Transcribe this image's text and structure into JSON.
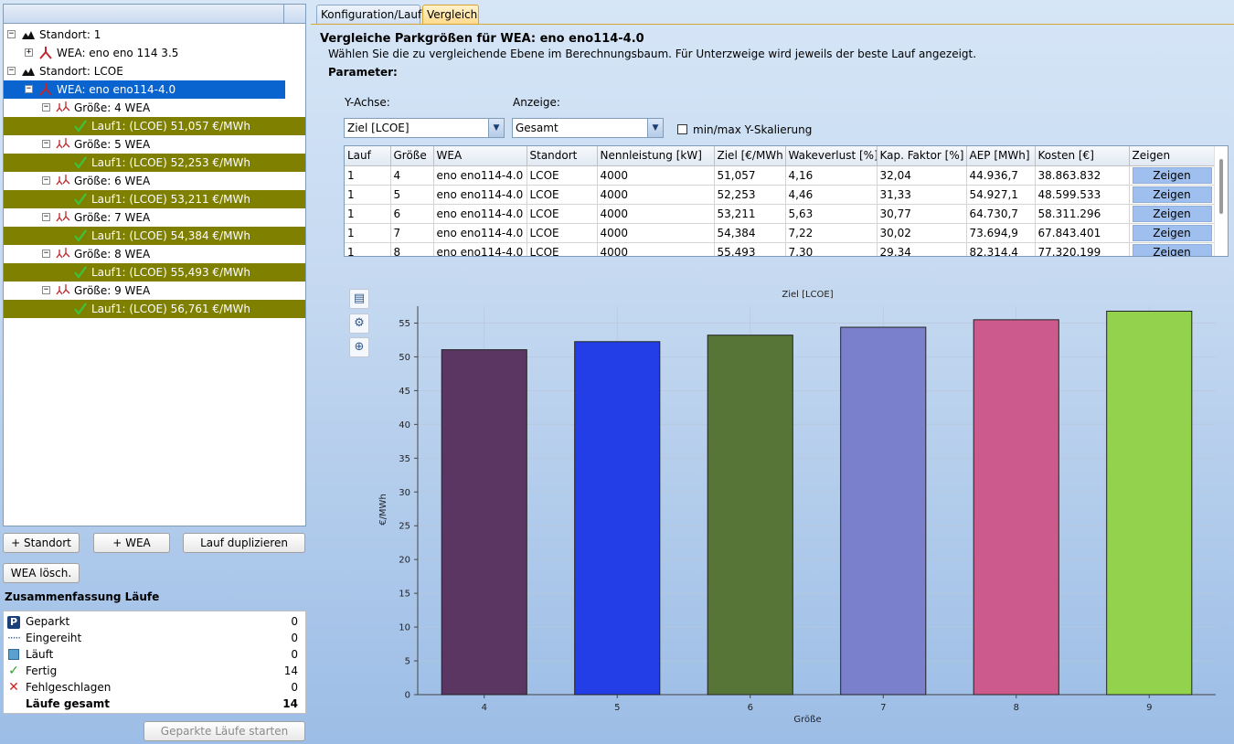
{
  "tree": {
    "items": [
      {
        "level": 0,
        "expander": "−",
        "icon": "site-icon",
        "label": "Standort: 1",
        "state": "normal"
      },
      {
        "level": 1,
        "expander": "+",
        "icon": "turbine-icon",
        "label": "WEA: eno eno 114 3.5",
        "state": "normal"
      },
      {
        "level": 0,
        "expander": "−",
        "icon": "site-icon",
        "label": "Standort: LCOE",
        "state": "normal"
      },
      {
        "level": 1,
        "expander": "−",
        "icon": "turbine-icon",
        "label": "WEA: eno eno114-4.0",
        "state": "selected"
      },
      {
        "level": 2,
        "expander": "−",
        "icon": "windpark-icon",
        "label": "Größe: 4 WEA",
        "state": "normal"
      },
      {
        "level": 3,
        "expander": "",
        "icon": "check-icon",
        "label": "Lauf1: (LCOE) 51,057 €/MWh",
        "state": "highlight"
      },
      {
        "level": 2,
        "expander": "−",
        "icon": "windpark-icon",
        "label": "Größe: 5 WEA",
        "state": "normal"
      },
      {
        "level": 3,
        "expander": "",
        "icon": "check-icon",
        "label": "Lauf1: (LCOE) 52,253 €/MWh",
        "state": "highlight"
      },
      {
        "level": 2,
        "expander": "−",
        "icon": "windpark-icon",
        "label": "Größe: 6 WEA",
        "state": "normal"
      },
      {
        "level": 3,
        "expander": "",
        "icon": "check-icon",
        "label": "Lauf1: (LCOE) 53,211 €/MWh",
        "state": "highlight"
      },
      {
        "level": 2,
        "expander": "−",
        "icon": "windpark-icon",
        "label": "Größe: 7 WEA",
        "state": "normal"
      },
      {
        "level": 3,
        "expander": "",
        "icon": "check-icon",
        "label": "Lauf1: (LCOE) 54,384 €/MWh",
        "state": "highlight"
      },
      {
        "level": 2,
        "expander": "−",
        "icon": "windpark-icon",
        "label": "Größe: 8 WEA",
        "state": "normal"
      },
      {
        "level": 3,
        "expander": "",
        "icon": "check-icon",
        "label": "Lauf1: (LCOE) 55,493 €/MWh",
        "state": "highlight"
      },
      {
        "level": 2,
        "expander": "−",
        "icon": "windpark-icon",
        "label": "Größe: 9 WEA",
        "state": "normal"
      },
      {
        "level": 3,
        "expander": "",
        "icon": "check-icon",
        "label": "Lauf1: (LCOE) 56,761 €/MWh",
        "state": "highlight"
      }
    ]
  },
  "buttons": {
    "add_site": "+ Standort",
    "add_wea": "+ WEA",
    "duplicate_run": "Lauf duplizieren",
    "delete_wea": "WEA lösch.",
    "start_parked": "Geparkte Läufe starten"
  },
  "summary": {
    "title": "Zusammenfassung Läufe",
    "rows": [
      {
        "icon": "parked-icon",
        "label": "Geparkt",
        "value": "0"
      },
      {
        "icon": "queued-icon",
        "label": "Eingereiht",
        "value": "0"
      },
      {
        "icon": "running-icon",
        "label": "Läuft",
        "value": "0"
      },
      {
        "icon": "done-icon",
        "label": "Fertig",
        "value": "14"
      },
      {
        "icon": "failed-icon",
        "label": "Fehlgeschlagen",
        "value": "0"
      }
    ],
    "total_label": "Läufe gesamt",
    "total_value": "14"
  },
  "tabs": [
    {
      "label": "Konfiguration/Lauf",
      "active": false
    },
    {
      "label": "Vergleich",
      "active": true
    }
  ],
  "compare": {
    "title": "Vergleiche Parkgrößen für WEA: eno eno114-4.0",
    "description": "Wählen Sie die zu vergleichende Ebene im Berechnungsbaum. Für Unterzweige wird jeweils der beste Lauf angezeigt.",
    "param_title": "Parameter:",
    "yaxis_label": "Y-Achse:",
    "yaxis_value": "Ziel [LCOE]",
    "display_label": "Anzeige:",
    "display_value": "Gesamt",
    "minmax_label": "min/max Y-Skalierung"
  },
  "table": {
    "columns": [
      "Lauf",
      "Größe",
      "WEA",
      "Standort",
      "Nennleistung [kW]",
      "Ziel [€/MWh",
      "Wakeverlust [%]",
      "Kap. Faktor [%]",
      "AEP [MWh]",
      "Kosten [€]",
      "Zeigen"
    ],
    "rows": [
      [
        "1",
        "4",
        "eno eno114-4.0",
        "LCOE",
        "4000",
        "51,057",
        "4,16",
        "32,04",
        "44.936,7",
        "38.863.832",
        "Zeigen"
      ],
      [
        "1",
        "5",
        "eno eno114-4.0",
        "LCOE",
        "4000",
        "52,253",
        "4,46",
        "31,33",
        "54.927,1",
        "48.599.533",
        "Zeigen"
      ],
      [
        "1",
        "6",
        "eno eno114-4.0",
        "LCOE",
        "4000",
        "53,211",
        "5,63",
        "30,77",
        "64.730,7",
        "58.311.296",
        "Zeigen"
      ],
      [
        "1",
        "7",
        "eno eno114-4.0",
        "LCOE",
        "4000",
        "54,384",
        "7,22",
        "30,02",
        "73.694,9",
        "67.843.401",
        "Zeigen"
      ],
      [
        "1",
        "8",
        "eno eno114-4.0",
        "LCOE",
        "4000",
        "55,493",
        "7,30",
        "29,34",
        "82.314,4",
        "77.320.199",
        "Zeigen"
      ]
    ]
  },
  "chart_tools": [
    {
      "icon": "export-icon",
      "glyph": "▤"
    },
    {
      "icon": "settings-icon",
      "glyph": "⚙"
    },
    {
      "icon": "zoom-icon",
      "glyph": "⊕"
    }
  ],
  "chart_data": {
    "type": "bar",
    "title": "Ziel [LCOE]",
    "xlabel": "Größe",
    "ylabel": "€/MWh",
    "categories": [
      "4",
      "5",
      "6",
      "7",
      "8",
      "9"
    ],
    "values": [
      51.057,
      52.253,
      53.211,
      54.384,
      55.493,
      56.761
    ],
    "colors": [
      "#5c3662",
      "#233ee6",
      "#567536",
      "#7b80cc",
      "#cc5a8c",
      "#93d24d"
    ],
    "ylim": [
      0,
      57.5
    ],
    "yticks": [
      0,
      5,
      10,
      15,
      20,
      25,
      30,
      35,
      40,
      45,
      50,
      55
    ],
    "grid": true,
    "legend": "none"
  }
}
